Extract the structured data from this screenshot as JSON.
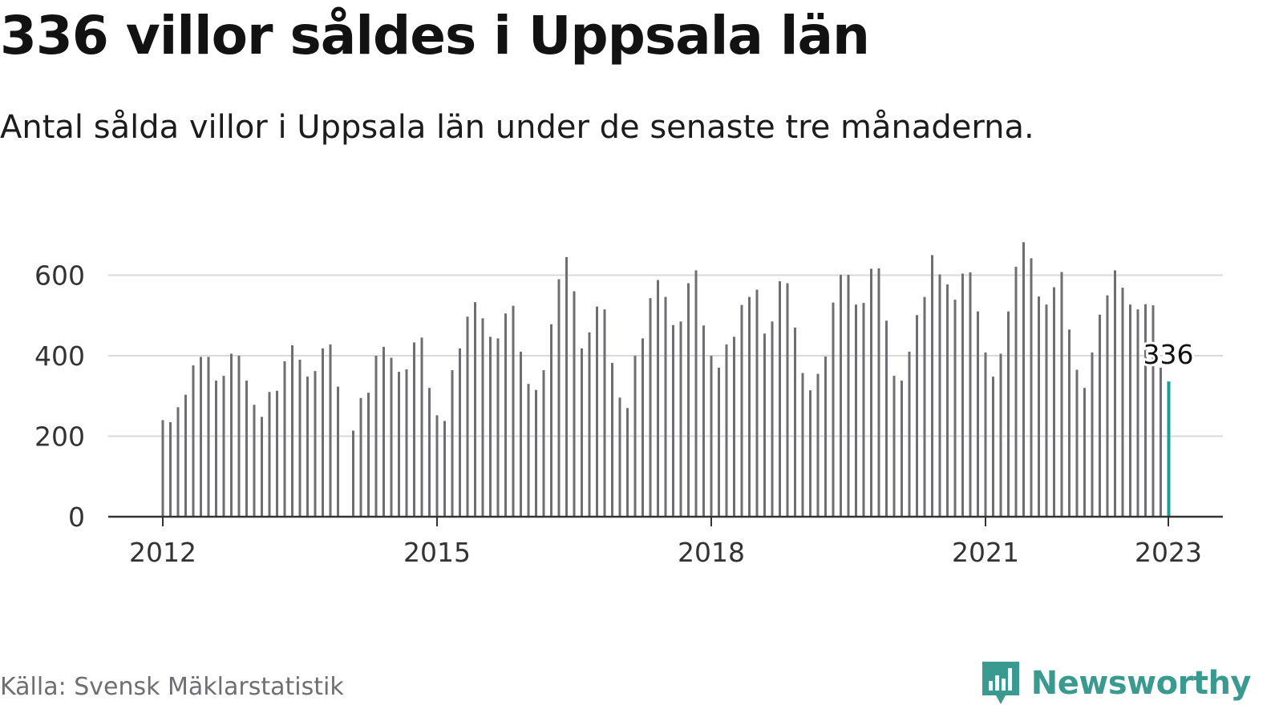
{
  "title": "336 villor såldes i Uppsala län",
  "subtitle": "Antal sålda villor i Uppsala län under de senaste tre månaderna.",
  "source": "Källa: Svensk Mäklarstatistik",
  "brand": {
    "name": "Newsworthy",
    "logo_icon": "bar-chart-speech-bubble-icon",
    "color": "#3a9a8f"
  },
  "colors": {
    "bar": "#6e6e73",
    "highlight": "#1a9e96",
    "grid": "#d9d9d9",
    "axis": "#333333"
  },
  "chart_data": {
    "type": "bar",
    "x_unit": "month",
    "x_start": "2012-01",
    "x_end": "2023-01",
    "ylim": [
      0,
      700
    ],
    "yticks": [
      0,
      200,
      400,
      600
    ],
    "xticks": [
      "2012",
      "2015",
      "2018",
      "2021",
      "2023"
    ],
    "grid": true,
    "highlight": {
      "date": "2023-01",
      "value": 336,
      "label": "336"
    },
    "values": [
      240,
      235,
      272,
      303,
      376,
      397,
      397,
      338,
      350,
      405,
      400,
      338,
      278,
      248,
      310,
      313,
      386,
      426,
      390,
      348,
      362,
      418,
      428,
      323,
      null,
      214,
      295,
      308,
      400,
      422,
      395,
      360,
      366,
      433,
      445,
      320,
      252,
      238,
      364,
      418,
      497,
      533,
      493,
      447,
      443,
      505,
      524,
      410,
      330,
      315,
      364,
      478,
      590,
      645,
      560,
      418,
      458,
      522,
      515,
      382,
      296,
      270,
      400,
      443,
      543,
      588,
      546,
      476,
      485,
      580,
      612,
      475,
      400,
      370,
      428,
      447,
      526,
      546,
      564,
      455,
      485,
      585,
      580,
      470,
      357,
      314,
      355,
      398,
      532,
      601,
      601,
      527,
      531,
      616,
      617,
      487,
      350,
      338,
      410,
      501,
      546,
      650,
      602,
      577,
      539,
      604,
      607,
      510,
      408,
      348,
      405,
      510,
      621,
      682,
      642,
      547,
      527,
      570,
      608,
      465,
      365,
      320,
      408,
      502,
      550,
      612,
      569,
      527,
      515,
      528,
      525,
      370,
      336
    ]
  }
}
